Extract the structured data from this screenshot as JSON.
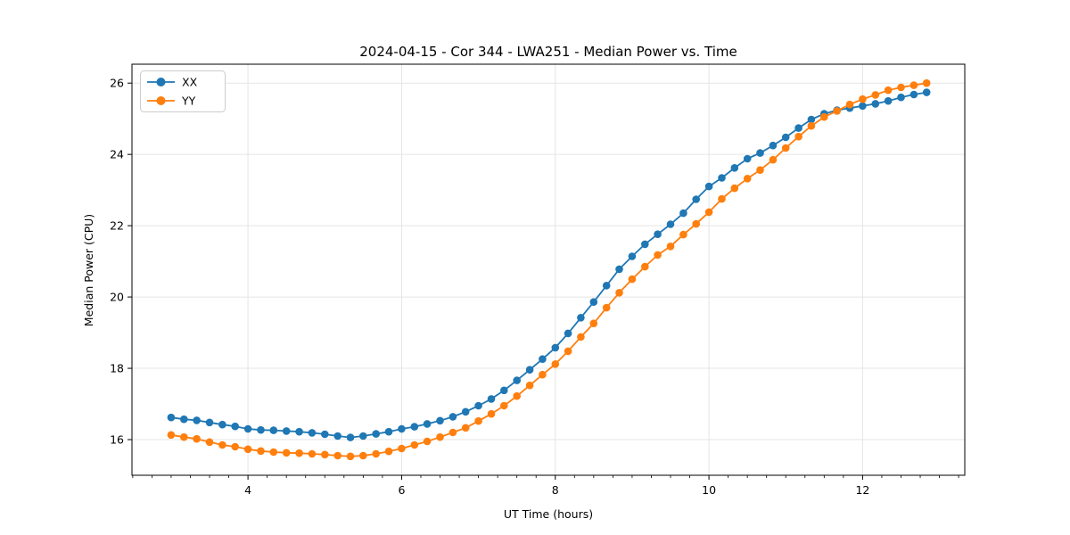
{
  "figure": {
    "background": "#ffffff",
    "spine_color": "#000000",
    "grid_color": "#e5e5e5"
  },
  "chart_data": {
    "type": "line",
    "title": "2024-04-15 - Cor 344 - LWA251 - Median Power vs. Time",
    "xlabel": "UT Time (hours)",
    "ylabel": "Median Power (CPU)",
    "xlim": [
      2.49,
      13.33
    ],
    "ylim": [
      15.0,
      26.53
    ],
    "x_major_ticks": [
      4,
      6,
      8,
      10,
      12
    ],
    "x_minor_tick_step": 0.25,
    "y_major_ticks": [
      16,
      18,
      20,
      22,
      24,
      26
    ],
    "grid": true,
    "legend_position": "upper-left",
    "marker": "circle",
    "x": [
      3.0,
      3.167,
      3.333,
      3.5,
      3.667,
      3.833,
      4.0,
      4.167,
      4.333,
      4.5,
      4.667,
      4.833,
      5.0,
      5.167,
      5.333,
      5.5,
      5.667,
      5.833,
      6.0,
      6.167,
      6.333,
      6.5,
      6.667,
      6.833,
      7.0,
      7.167,
      7.333,
      7.5,
      7.667,
      7.833,
      8.0,
      8.167,
      8.333,
      8.5,
      8.667,
      8.833,
      9.0,
      9.167,
      9.333,
      9.5,
      9.667,
      9.833,
      10.0,
      10.167,
      10.333,
      10.5,
      10.667,
      10.833,
      11.0,
      11.167,
      11.333,
      11.5,
      11.667,
      11.833,
      12.0,
      12.167,
      12.333,
      12.5,
      12.667,
      12.833
    ],
    "series": [
      {
        "name": "XX",
        "color": "#1f77b4",
        "values": [
          16.62,
          16.57,
          16.54,
          16.48,
          16.42,
          16.37,
          16.3,
          16.27,
          16.26,
          16.24,
          16.22,
          16.19,
          16.15,
          16.1,
          16.06,
          16.1,
          16.16,
          16.22,
          16.3,
          16.36,
          16.44,
          16.53,
          16.64,
          16.78,
          16.95,
          17.14,
          17.38,
          17.66,
          17.96,
          18.26,
          18.58,
          18.98,
          19.42,
          19.86,
          20.32,
          20.78,
          21.14,
          21.48,
          21.76,
          22.04,
          22.35,
          22.74,
          23.1,
          23.34,
          23.62,
          23.88,
          24.04,
          24.25,
          24.48,
          24.74,
          24.98,
          25.14,
          25.24,
          25.3,
          25.36,
          25.42,
          25.5,
          25.6,
          25.68,
          25.74
        ]
      },
      {
        "name": "YY",
        "color": "#ff7f0e",
        "values": [
          16.13,
          16.07,
          16.02,
          15.93,
          15.85,
          15.8,
          15.73,
          15.68,
          15.65,
          15.63,
          15.62,
          15.6,
          15.58,
          15.55,
          15.53,
          15.55,
          15.6,
          15.67,
          15.75,
          15.85,
          15.95,
          16.07,
          16.2,
          16.33,
          16.52,
          16.72,
          16.95,
          17.22,
          17.52,
          17.82,
          18.12,
          18.48,
          18.88,
          19.26,
          19.7,
          20.12,
          20.5,
          20.85,
          21.18,
          21.42,
          21.75,
          22.05,
          22.38,
          22.75,
          23.05,
          23.32,
          23.56,
          23.85,
          24.18,
          24.5,
          24.8,
          25.05,
          25.22,
          25.4,
          25.55,
          25.67,
          25.8,
          25.88,
          25.94,
          26.0
        ]
      }
    ]
  }
}
